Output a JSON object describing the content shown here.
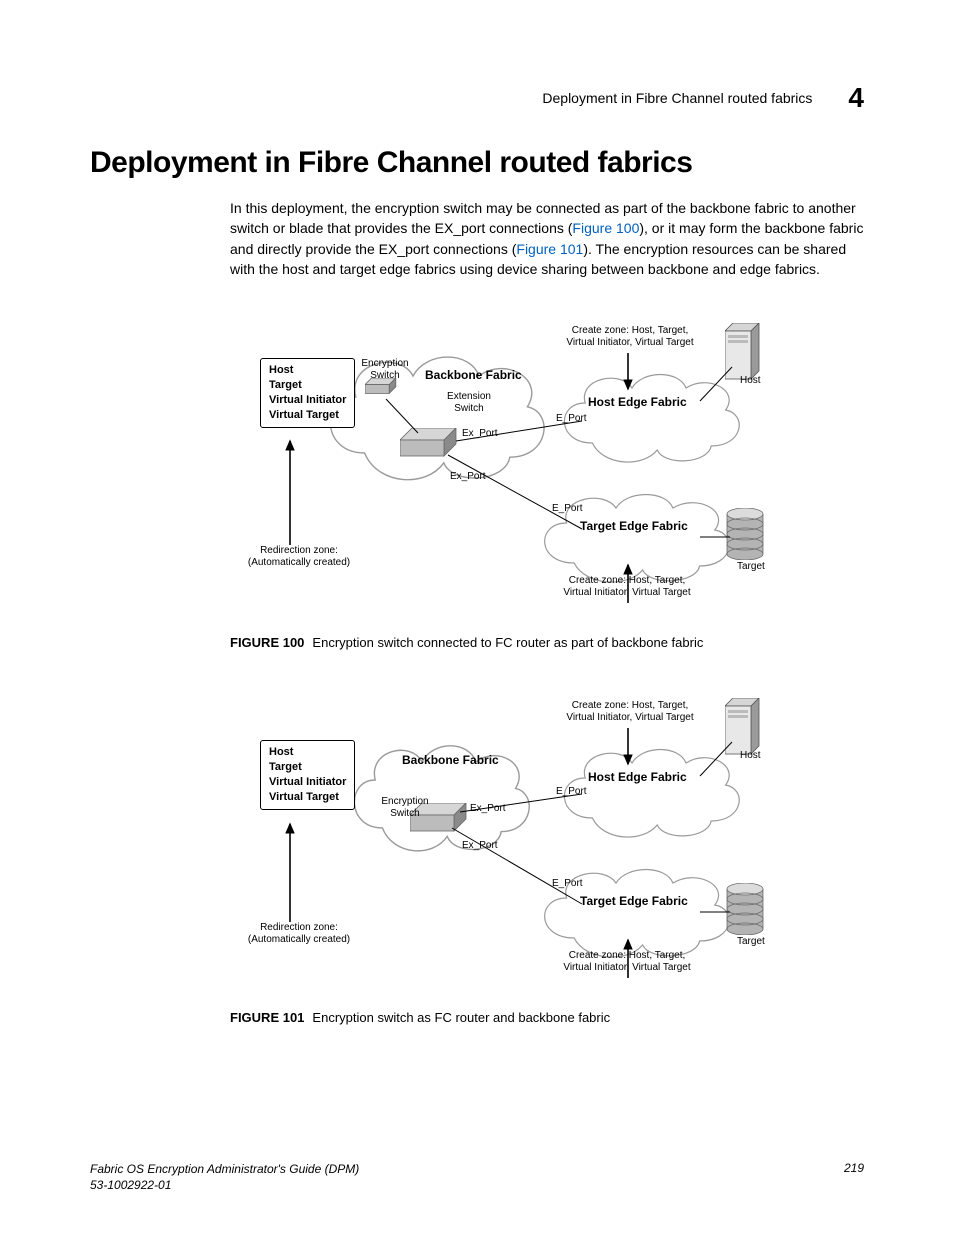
{
  "header": {
    "running_title": "Deployment in Fibre Channel routed fabrics",
    "chapter_number": "4"
  },
  "section": {
    "title": "Deployment in Fibre Channel routed fabrics",
    "paragraph_before_link1": "In this deployment, the encryption switch may be connected as part of the backbone fabric to another switch or blade that provides the EX_port connections (",
    "link1": "Figure 100",
    "paragraph_between": "), or it may form the backbone fabric and directly provide the EX_port connections (",
    "link2": "Figure 101",
    "paragraph_after_link2": "). The encryption resources can be shared with the host and target edge fabrics using device sharing between backbone and edge fabrics."
  },
  "figures": {
    "f100": {
      "label": "FIGURE 100",
      "caption": "Encryption switch connected to FC router as part of backbone fabric"
    },
    "f101": {
      "label": "FIGURE 101",
      "caption": "Encryption switch as FC router and backbone fabric"
    }
  },
  "diagram_common": {
    "zone_items": {
      "a": "Host",
      "b": "Target",
      "c": "Virtual Initiator",
      "d": "Virtual Target"
    },
    "redirection_zone_l1": "Redirection zone:",
    "redirection_zone_l2": "(Automatically created)",
    "create_zone_l1": "Create zone: Host, Target,",
    "create_zone_l2": "Virtual Initiator, Virtual Target",
    "host_label": "Host",
    "target_label": "Target",
    "backbone_fabric": "Backbone Fabric",
    "host_edge_fabric": "Host Edge Fabric",
    "target_edge_fabric": "Target Edge Fabric",
    "encryption_switch_l1": "Encryption",
    "encryption_switch_l2": "Switch",
    "extension_switch_l1": "Extension",
    "extension_switch_l2": "Switch",
    "ex_port": "Ex_Port",
    "e_port": "E_Port"
  },
  "colors": {
    "text": "#000000",
    "link": "#0060c0",
    "cloud_fill": "#ffffff",
    "cloud_stroke": "#9a9a9a",
    "cloud_stroke_back": "#b8b8b8",
    "switch_top": "#d6d6d6",
    "switch_side": "#8a8a8a",
    "switch_front": "#bcbcbc",
    "host_body": "#e8e8e8",
    "host_shadow": "#9a9a9a",
    "cyl_top": "#dcdcdc",
    "cyl_body": "#b4b4b4",
    "cyl_line": "#6b6b6b"
  },
  "footer": {
    "book": "Fabric OS Encryption Administrator's Guide (DPM)",
    "pub": "53-1002922-01",
    "page": "219"
  }
}
